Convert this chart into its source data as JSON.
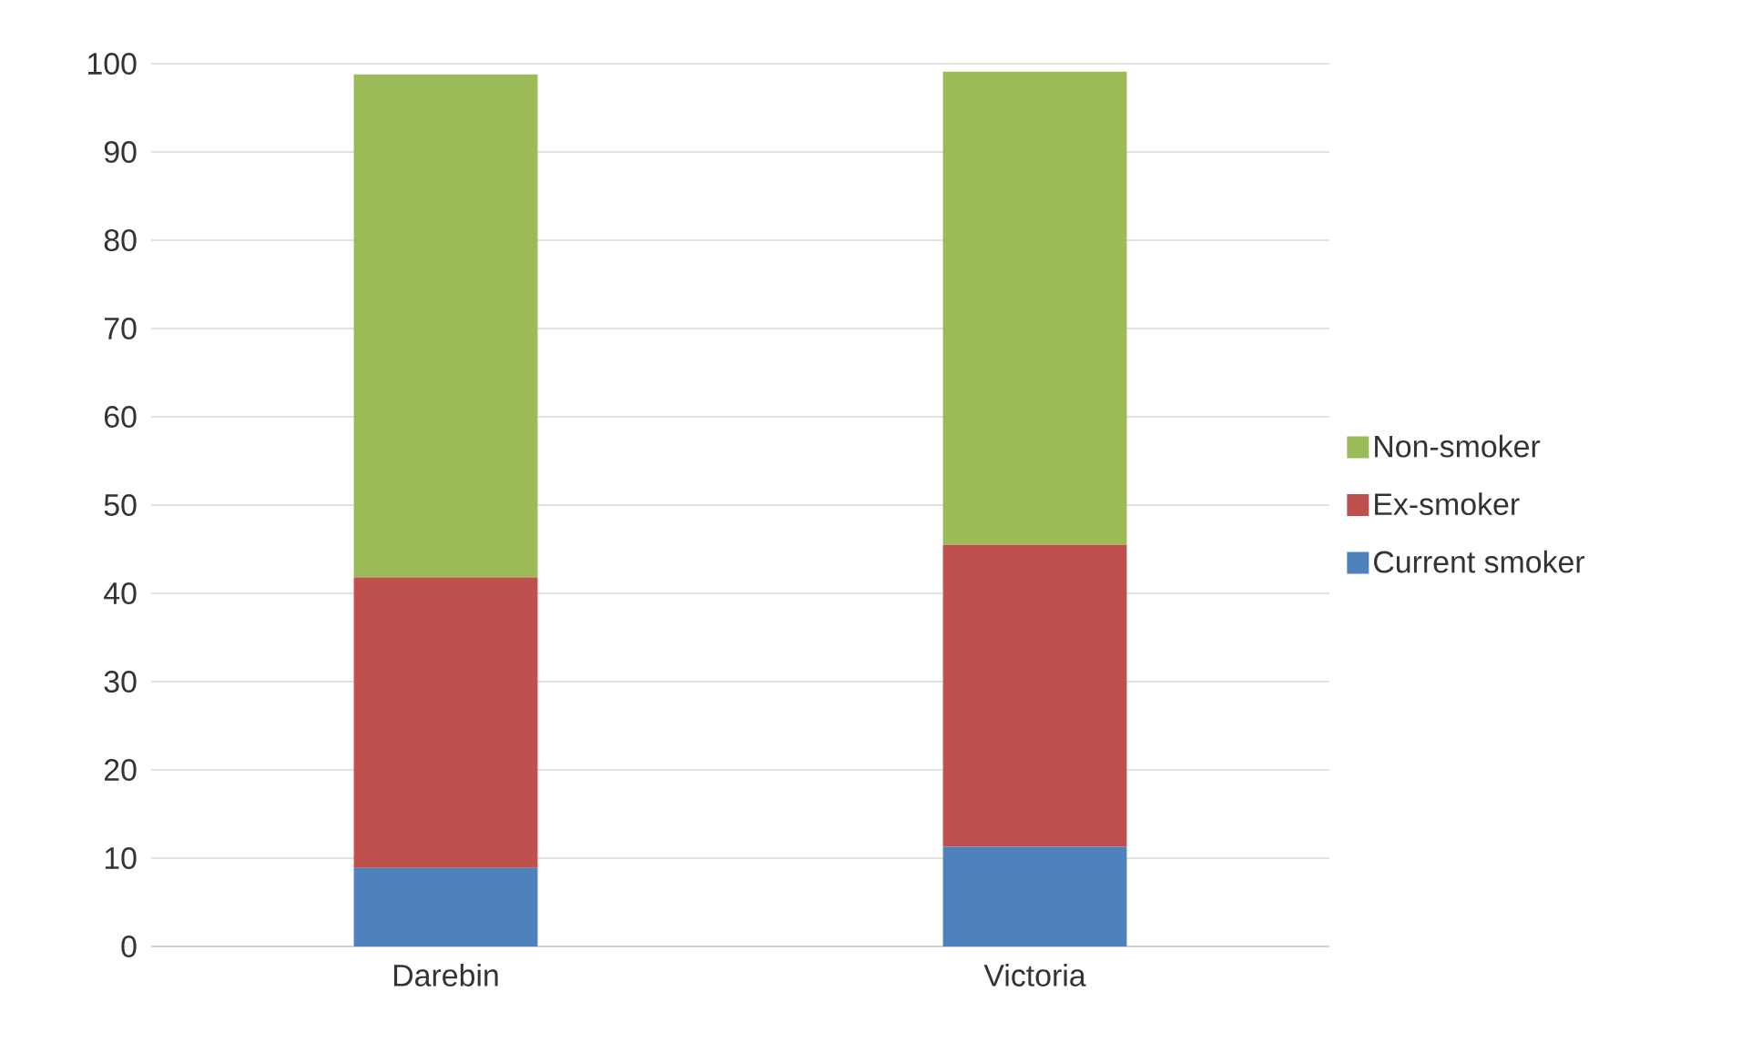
{
  "chart_data": {
    "type": "bar",
    "stacked": true,
    "categories": [
      "Darebin",
      "Victoria"
    ],
    "series": [
      {
        "name": "Current smoker",
        "color": "#4f81bd",
        "values": [
          8.9,
          11.3
        ]
      },
      {
        "name": "Ex-smoker",
        "color": "#c0504d",
        "values": [
          32.9,
          34.2
        ]
      },
      {
        "name": "Non-smoker",
        "color": "#9bbb59",
        "values": [
          57.0,
          53.6
        ]
      }
    ],
    "ylim": [
      0,
      100
    ],
    "yticks": [
      0,
      10,
      20,
      30,
      40,
      50,
      60,
      70,
      80,
      90,
      100
    ],
    "grid": "y",
    "legend": "right"
  }
}
